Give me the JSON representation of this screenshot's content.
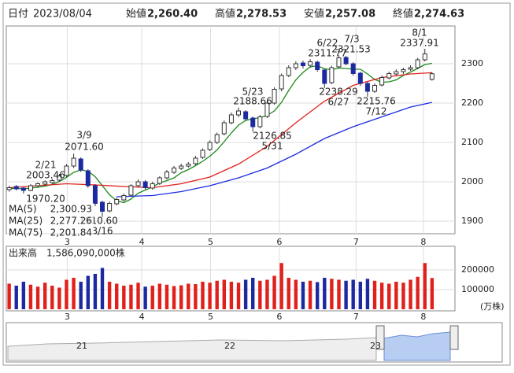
{
  "header": {
    "date_label": "日付",
    "date": "2023/08/04",
    "fields": [
      {
        "name": "始値",
        "value": "2,260.40",
        "color": "#111"
      },
      {
        "name": "高値",
        "value": "2,278.53",
        "color": "#e0201b"
      },
      {
        "name": "安値",
        "value": "2,257.08",
        "color": "#138a13"
      },
      {
        "name": "終値",
        "value": "2,274.63",
        "color": "#111"
      }
    ]
  },
  "chart_data": [
    {
      "type": "candlestick",
      "up_color": "#ffffff",
      "down_color": "#1c2aa0",
      "edge_color": "#333333",
      "xlim": [
        -0.4,
        62.2
      ],
      "ylim": [
        1868,
        2396
      ],
      "yticks": [
        1900,
        2000,
        2100,
        2200,
        2300
      ],
      "xticks": [
        {
          "value": 8.1,
          "label": "3"
        },
        {
          "value": 18.5,
          "label": "4"
        },
        {
          "value": 28.1,
          "label": "5"
        },
        {
          "value": 37.7,
          "label": "6"
        },
        {
          "value": 48.4,
          "label": "7"
        },
        {
          "value": 57.8,
          "label": "8"
        }
      ],
      "grid": true,
      "candles": [
        [
          1980,
          1990,
          1975,
          1985
        ],
        [
          1988,
          1992,
          1978,
          1982
        ],
        [
          1984,
          1986,
          1970.2,
          1978
        ],
        [
          1978,
          1994,
          1976,
          1990
        ],
        [
          1990,
          1998,
          1986,
          1995
        ],
        [
          1994,
          2003.46,
          1990,
          2000
        ],
        [
          1998,
          2008,
          1994,
          2003
        ],
        [
          2004,
          2020,
          2000,
          2015
        ],
        [
          2016,
          2045,
          2012,
          2040
        ],
        [
          2040,
          2071.6,
          2035,
          2060
        ],
        [
          2058,
          2062,
          2025,
          2030
        ],
        [
          2028,
          2032,
          1985,
          1990
        ],
        [
          1990,
          1994,
          1938,
          1945
        ],
        [
          1948,
          1952,
          1910.6,
          1925
        ],
        [
          1926,
          1950,
          1922,
          1945
        ],
        [
          1944,
          1960,
          1940,
          1955
        ],
        [
          1954,
          1970,
          1950,
          1965
        ],
        [
          1966,
          1994,
          1962,
          1990
        ],
        [
          1990,
          2006,
          1986,
          2000
        ],
        [
          2000,
          2004,
          1980,
          1985
        ],
        [
          1984,
          2000,
          1980,
          1995
        ],
        [
          1996,
          2014,
          1992,
          2010
        ],
        [
          2010,
          2030,
          2006,
          2025
        ],
        [
          2024,
          2040,
          2020,
          2035
        ],
        [
          2034,
          2046,
          2030,
          2040
        ],
        [
          2040,
          2050,
          2036,
          2045
        ],
        [
          2046,
          2066,
          2042,
          2060
        ],
        [
          2062,
          2085,
          2058,
          2080
        ],
        [
          2082,
          2105,
          2078,
          2100
        ],
        [
          2100,
          2125,
          2096,
          2120
        ],
        [
          2122,
          2156,
          2118,
          2150
        ],
        [
          2150,
          2176,
          2146,
          2170
        ],
        [
          2170,
          2188.66,
          2164,
          2180
        ],
        [
          2178,
          2182,
          2155,
          2160
        ],
        [
          2162,
          2166,
          2126.85,
          2140
        ],
        [
          2140,
          2170,
          2136,
          2165
        ],
        [
          2166,
          2205,
          2162,
          2200
        ],
        [
          2200,
          2240,
          2196,
          2235
        ],
        [
          2236,
          2275,
          2230,
          2270
        ],
        [
          2270,
          2296,
          2266,
          2290
        ],
        [
          2290,
          2306,
          2284,
          2300
        ],
        [
          2302,
          2308,
          2288,
          2295
        ],
        [
          2296,
          2311.77,
          2290,
          2305
        ],
        [
          2304,
          2308,
          2280,
          2285
        ],
        [
          2284,
          2288,
          2238.29,
          2250
        ],
        [
          2252,
          2295,
          2248,
          2290
        ],
        [
          2292,
          2321.53,
          2288,
          2315
        ],
        [
          2316,
          2320,
          2296,
          2300
        ],
        [
          2300,
          2304,
          2270,
          2275
        ],
        [
          2276,
          2280,
          2244,
          2250
        ],
        [
          2250,
          2254,
          2215.76,
          2230
        ],
        [
          2230,
          2250,
          2226,
          2245
        ],
        [
          2246,
          2270,
          2242,
          2265
        ],
        [
          2264,
          2280,
          2260,
          2275
        ],
        [
          2274,
          2286,
          2270,
          2280
        ],
        [
          2280,
          2290,
          2274,
          2285
        ],
        [
          2286,
          2296,
          2282,
          2290
        ],
        [
          2290,
          2315,
          2286,
          2310
        ],
        [
          2310,
          2337.91,
          2306,
          2325
        ],
        [
          2260.4,
          2278.53,
          2257.08,
          2274.63
        ]
      ],
      "series": [
        {
          "name": "MA(5)",
          "value_label": "2,300.93",
          "color": "#1a8a1a",
          "values": [
            1983,
            1983,
            1982,
            1984,
            1986,
            1989,
            1993,
            2001,
            2011,
            2024,
            2030,
            2027,
            2013,
            1990,
            1967,
            1952,
            1947,
            1956,
            1971,
            1979,
            1987,
            1997,
            2003,
            2010,
            2023,
            2031,
            2041,
            2052,
            2065,
            2081,
            2102,
            2124,
            2144,
            2156,
            2160,
            2163,
            2169,
            2180,
            2202,
            2232,
            2259,
            2278,
            2292,
            2295,
            2287,
            2285,
            2289,
            2288,
            2286,
            2286,
            2274,
            2260,
            2253,
            2254,
            2259,
            2270,
            2279,
            2288,
            2298,
            2300.93
          ]
        },
        {
          "name": "MA(25)",
          "value_label": "2,277.26",
          "color": "#e0201b",
          "x": [
            0,
            4,
            8,
            12,
            16,
            20,
            24,
            28,
            32,
            36,
            40,
            44,
            48,
            52,
            56,
            59
          ],
          "values": [
            1985,
            1990,
            1995,
            1992,
            1988,
            1985,
            1995,
            2012,
            2045,
            2090,
            2150,
            2205,
            2245,
            2265,
            2274,
            2277.26
          ]
        },
        {
          "name": "MA(75)",
          "value_label": "2,201.84",
          "color": "#1c2ae0",
          "x": [
            15,
            20,
            24,
            28,
            32,
            36,
            40,
            44,
            48,
            52,
            56,
            59
          ],
          "values": [
            1962,
            1965,
            1975,
            1990,
            2010,
            2035,
            2070,
            2110,
            2140,
            2165,
            2190,
            2201.84
          ]
        }
      ],
      "annotations": [
        {
          "date": "3/9",
          "price": "2071.60"
        },
        {
          "date": "2/21",
          "price": "2003.46"
        },
        {
          "price": "1970.20"
        },
        {
          "date": "3/16",
          "price": "1910.60"
        },
        {
          "date": "5/23",
          "price": "2188.66"
        },
        {
          "date": "5/31",
          "price": "2126.85"
        },
        {
          "date": "6/22",
          "price": "2311.77"
        },
        {
          "date": "7/3",
          "price": "2321.53"
        },
        {
          "date": "6/27",
          "price": "2238.29"
        },
        {
          "date": "7/12",
          "price": "2215.76"
        },
        {
          "date": "8/1",
          "price": "2337.91"
        }
      ]
    },
    {
      "type": "bar",
      "title": "出来高　1,586,090,000株",
      "unit": "(万株)",
      "up_color": "#e0201b",
      "down_color": "#1c2aa0",
      "xlim": [
        -0.4,
        62.2
      ],
      "ylim": [
        0,
        320000
      ],
      "yticks": [
        100000,
        200000
      ],
      "xticks": [
        {
          "value": 8.1,
          "label": "3"
        },
        {
          "value": 18.5,
          "label": "4"
        },
        {
          "value": 28.1,
          "label": "5"
        },
        {
          "value": 37.7,
          "label": "6"
        },
        {
          "value": 48.4,
          "label": "7"
        },
        {
          "value": 57.8,
          "label": "8"
        }
      ],
      "values": [
        130000,
        120000,
        140000,
        125000,
        115000,
        135000,
        120000,
        110000,
        150000,
        160000,
        140000,
        170000,
        180000,
        210000,
        140000,
        130000,
        120000,
        125000,
        135000,
        115000,
        120000,
        130000,
        125000,
        118000,
        122000,
        130000,
        128000,
        140000,
        135000,
        145000,
        150000,
        140000,
        135000,
        150000,
        160000,
        145000,
        150000,
        170000,
        235000,
        160000,
        150000,
        140000,
        145000,
        138000,
        160000,
        155000,
        150000,
        145000,
        150000,
        140000,
        155000,
        145000,
        135000,
        130000,
        140000,
        135000,
        150000,
        165000,
        235000,
        158609
      ]
    }
  ],
  "navigator": {
    "labels": [
      "21",
      "22",
      "23"
    ]
  }
}
